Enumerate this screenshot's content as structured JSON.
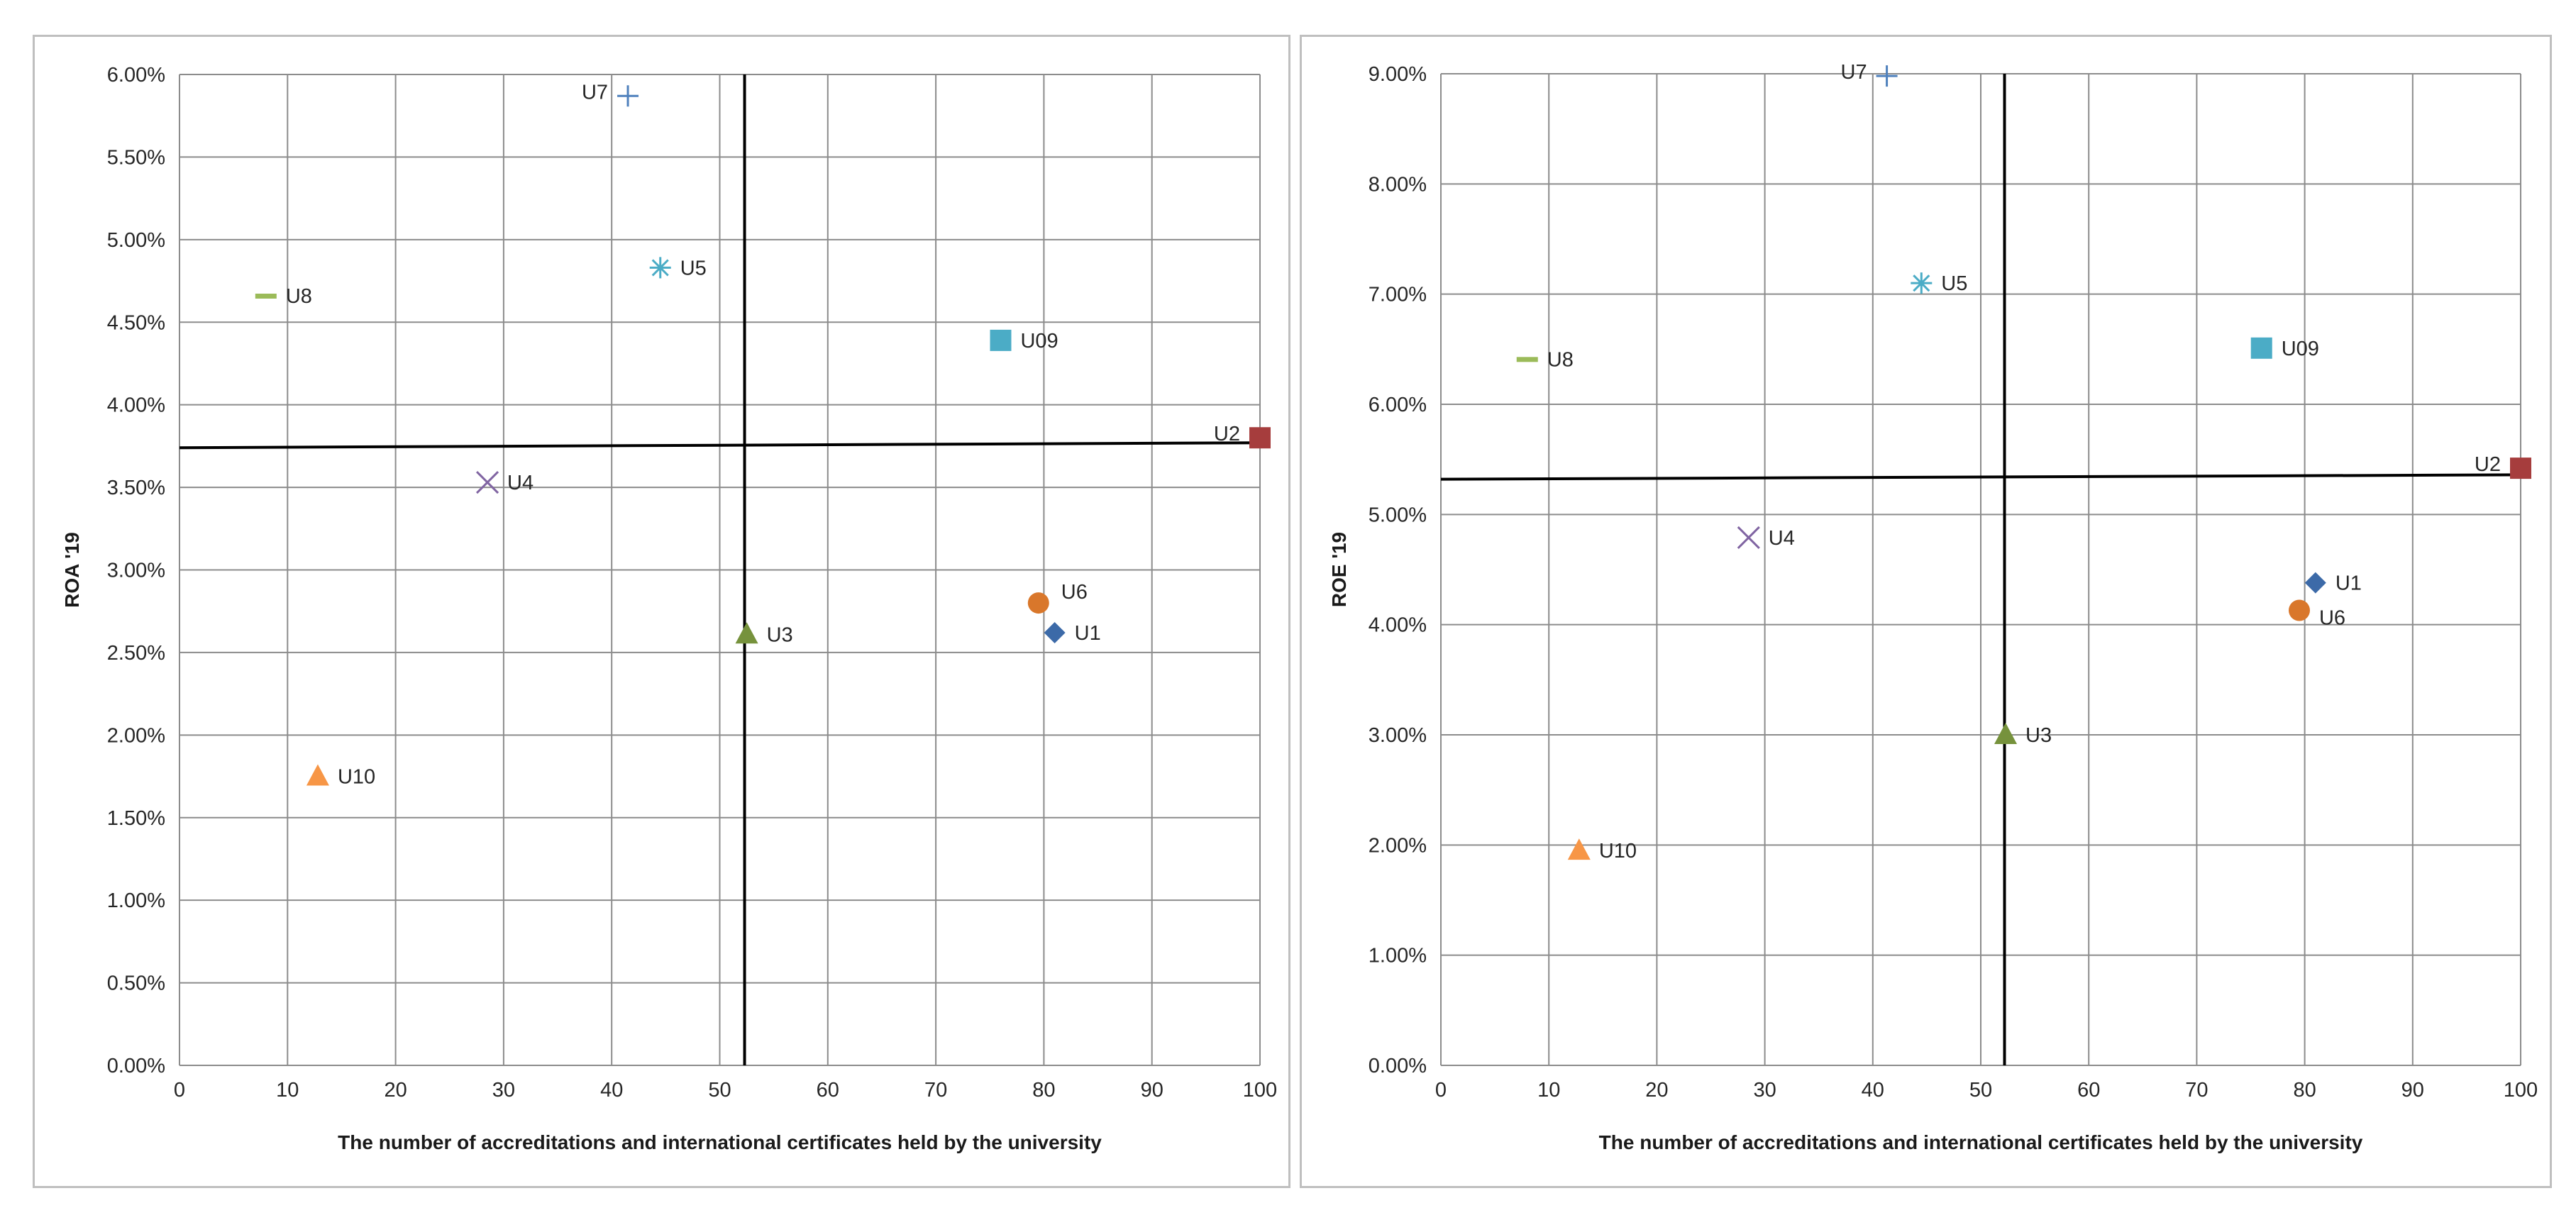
{
  "chart_data": [
    {
      "type": "scatter",
      "title": "",
      "xlabel": "The number of accreditations and international certificates held by the university",
      "ylabel": "ROA '19",
      "xlim": [
        0,
        100
      ],
      "ylim": [
        0,
        0.06
      ],
      "x_ticks": [
        0,
        10,
        20,
        30,
        40,
        50,
        60,
        70,
        80,
        90,
        100
      ],
      "y_ticks": [
        0,
        0.005,
        0.01,
        0.015,
        0.02,
        0.025,
        0.03,
        0.035,
        0.04,
        0.045,
        0.05,
        0.055,
        0.06
      ],
      "x_tick_labels": [
        "0",
        "10",
        "20",
        "30",
        "40",
        "50",
        "60",
        "70",
        "80",
        "90",
        "100"
      ],
      "y_tick_labels": [
        "0.00%",
        "0.50%",
        "1.00%",
        "1.50%",
        "2.00%",
        "2.50%",
        "3.00%",
        "3.50%",
        "4.00%",
        "4.50%",
        "5.00%",
        "5.50%",
        "6.00%"
      ],
      "grid": true,
      "reference_lines": {
        "vertical_x": [
          52.3,
          52.3
        ],
        "horizontal_y": [
          0.0374,
          0.0377
        ]
      },
      "points": [
        {
          "label": "U1",
          "x": 81,
          "y": 0.0262,
          "marker": "diamond",
          "color": "#3c6aa8",
          "label_side": "right"
        },
        {
          "label": "U2",
          "x": 100,
          "y": 0.038,
          "marker": "square",
          "color": "#a63d3d",
          "label_side": "left"
        },
        {
          "label": "U3",
          "x": 52.5,
          "y": 0.0261,
          "marker": "triangle",
          "color": "#76923c",
          "label_side": "right"
        },
        {
          "label": "U4",
          "x": 28.5,
          "y": 0.0353,
          "marker": "x",
          "color": "#8064a2",
          "label_side": "right"
        },
        {
          "label": "U5",
          "x": 44.5,
          "y": 0.0483,
          "marker": "asterisk",
          "color": "#4bacc6",
          "label_side": "right"
        },
        {
          "label": "U6",
          "x": 79.5,
          "y": 0.028,
          "marker": "circle",
          "color": "#d9772b",
          "label_side": "upper-right"
        },
        {
          "label": "U7",
          "x": 41.5,
          "y": 0.0587,
          "marker": "plus",
          "color": "#4f81bd",
          "label_side": "left"
        },
        {
          "label": "U8",
          "x": 8,
          "y": 0.0466,
          "marker": "dash",
          "color": "#9bbb59",
          "label_side": "right"
        },
        {
          "label": "U09",
          "x": 76,
          "y": 0.0439,
          "marker": "square",
          "color": "#4bacc6",
          "label_side": "right"
        },
        {
          "label": "U10",
          "x": 12.8,
          "y": 0.0175,
          "marker": "triangle",
          "color": "#f79646",
          "label_side": "right"
        }
      ]
    },
    {
      "type": "scatter",
      "title": "",
      "xlabel": "The number of accreditations and international certificates held by the university",
      "ylabel": "ROE '19",
      "xlim": [
        0,
        100
      ],
      "ylim": [
        0,
        0.09
      ],
      "x_ticks": [
        0,
        10,
        20,
        30,
        40,
        50,
        60,
        70,
        80,
        90,
        100
      ],
      "y_ticks": [
        0,
        0.01,
        0.02,
        0.03,
        0.04,
        0.05,
        0.06,
        0.07,
        0.08,
        0.09
      ],
      "x_tick_labels": [
        "0",
        "10",
        "20",
        "30",
        "40",
        "50",
        "60",
        "70",
        "80",
        "90",
        "100"
      ],
      "y_tick_labels": [
        "0.00%",
        "1.00%",
        "2.00%",
        "3.00%",
        "4.00%",
        "5.00%",
        "6.00%",
        "7.00%",
        "8.00%",
        "9.00%"
      ],
      "grid": true,
      "reference_lines": {
        "vertical_x": [
          52.2,
          52.2
        ],
        "horizontal_y": [
          0.0532,
          0.0536
        ]
      },
      "points": [
        {
          "label": "U1",
          "x": 81,
          "y": 0.0438,
          "marker": "diamond",
          "color": "#3c6aa8",
          "label_side": "right"
        },
        {
          "label": "U2",
          "x": 100,
          "y": 0.0542,
          "marker": "square",
          "color": "#a63d3d",
          "label_side": "left"
        },
        {
          "label": "U3",
          "x": 52.3,
          "y": 0.03,
          "marker": "triangle",
          "color": "#76923c",
          "label_side": "right"
        },
        {
          "label": "U4",
          "x": 28.5,
          "y": 0.0479,
          "marker": "x",
          "color": "#8064a2",
          "label_side": "right"
        },
        {
          "label": "U5",
          "x": 44.5,
          "y": 0.071,
          "marker": "asterisk",
          "color": "#4bacc6",
          "label_side": "right"
        },
        {
          "label": "U6",
          "x": 79.5,
          "y": 0.0413,
          "marker": "circle",
          "color": "#d9772b",
          "label_side": "lower-right"
        },
        {
          "label": "U7",
          "x": 41.3,
          "y": 0.0898,
          "marker": "plus",
          "color": "#4f81bd",
          "label_side": "left"
        },
        {
          "label": "U8",
          "x": 8,
          "y": 0.0641,
          "marker": "dash",
          "color": "#9bbb59",
          "label_side": "right"
        },
        {
          "label": "U09",
          "x": 76,
          "y": 0.0651,
          "marker": "square",
          "color": "#4bacc6",
          "label_side": "right"
        },
        {
          "label": "U10",
          "x": 12.8,
          "y": 0.0195,
          "marker": "triangle",
          "color": "#f79646",
          "label_side": "right"
        }
      ]
    }
  ]
}
